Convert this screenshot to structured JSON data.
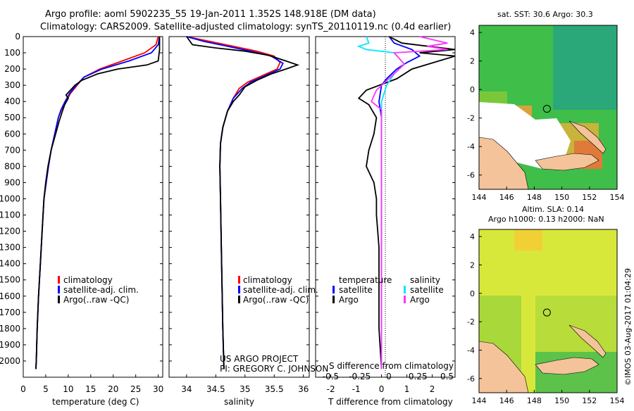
{
  "title_line1": "Argo profile: aoml 5902235_55 19-Jan-2011 1.352S 148.918E (DM data)",
  "title_line2": "Climatology: CARS2009. Satellite-adjusted climatology: synTS_20110119.nc (0.4d earlier)",
  "project_line1": "US ARGO PROJECT",
  "project_line2": "PI: GREGORY C. JOHNSON",
  "imos_stamp": "©IMOS 03-Aug-2017 01:04:29",
  "colors": {
    "climatology": "#ff0000",
    "satellite": "#0000ff",
    "argo": "#000000",
    "salinity_satellite": "#00e5ff",
    "salinity_argo": "#ff33ff",
    "land": "#f4c39a"
  },
  "chart_data": [
    {
      "type": "line",
      "name": "temperature-profile",
      "xlabel": "temperature (deg C)",
      "ylabel": "",
      "xlim": [
        0,
        31
      ],
      "ylim": [
        2100,
        0
      ],
      "xticks": [
        "0",
        "5",
        "10",
        "15",
        "20",
        "25",
        "30"
      ],
      "yticks": [
        "0",
        "100",
        "200",
        "300",
        "400",
        "500",
        "600",
        "700",
        "800",
        "900",
        "1000",
        "1100",
        "1200",
        "1300",
        "1400",
        "1500",
        "1600",
        "1700",
        "1800",
        "1900",
        "2000"
      ],
      "legend": [
        "climatology",
        "satellite-adj. clim.",
        "Argo(..raw -QC)"
      ],
      "series": [
        {
          "name": "climatology",
          "points": [
            [
              30.0,
              0
            ],
            [
              29.5,
              50
            ],
            [
              27,
              100
            ],
            [
              22,
              150
            ],
            [
              17,
              200
            ],
            [
              13.5,
              250
            ],
            [
              12,
              300
            ],
            [
              10.5,
              350
            ],
            [
              9.5,
              400
            ],
            [
              8.5,
              450
            ],
            [
              7.8,
              500
            ],
            [
              7,
              600
            ],
            [
              6.2,
              700
            ],
            [
              5.6,
              800
            ],
            [
              5.1,
              900
            ],
            [
              4.6,
              1000
            ],
            [
              4.2,
              1200
            ],
            [
              3.8,
              1400
            ],
            [
              3.4,
              1600
            ],
            [
              3.1,
              1800
            ],
            [
              2.9,
              2000
            ],
            [
              2.8,
              2050
            ]
          ]
        },
        {
          "name": "satellite",
          "points": [
            [
              30.3,
              0
            ],
            [
              30.0,
              50
            ],
            [
              28.5,
              100
            ],
            [
              23.5,
              150
            ],
            [
              17.5,
              200
            ],
            [
              13.5,
              250
            ],
            [
              11.8,
              300
            ],
            [
              10.3,
              350
            ],
            [
              9.3,
              400
            ],
            [
              8.4,
              450
            ],
            [
              7.8,
              500
            ],
            [
              7,
              600
            ],
            [
              6.2,
              700
            ],
            [
              5.6,
              800
            ],
            [
              5.1,
              900
            ],
            [
              4.6,
              1000
            ],
            [
              4.2,
              1200
            ],
            [
              3.8,
              1400
            ],
            [
              3.4,
              1600
            ],
            [
              3.1,
              1800
            ],
            [
              2.9,
              2000
            ],
            [
              2.8,
              2050
            ]
          ]
        },
        {
          "name": "argo",
          "points": [
            [
              30.3,
              0
            ],
            [
              30.3,
              80
            ],
            [
              30.0,
              150
            ],
            [
              27.5,
              175
            ],
            [
              21,
              200
            ],
            [
              16.5,
              230
            ],
            [
              13,
              270
            ],
            [
              11.5,
              300
            ],
            [
              9.5,
              360
            ],
            [
              10,
              380
            ],
            [
              9.2,
              420
            ],
            [
              8.7,
              460
            ],
            [
              8,
              520
            ],
            [
              7.2,
              600
            ],
            [
              6.2,
              700
            ],
            [
              5.5,
              800
            ],
            [
              5,
              900
            ],
            [
              4.6,
              1000
            ],
            [
              4.2,
              1200
            ],
            [
              3.8,
              1400
            ],
            [
              3.4,
              1600
            ],
            [
              3.1,
              1800
            ],
            [
              2.9,
              2000
            ],
            [
              2.8,
              2050
            ]
          ]
        }
      ]
    },
    {
      "type": "line",
      "name": "salinity-profile",
      "xlabel": "salinity",
      "xlim": [
        33.7,
        36.1
      ],
      "ylim": [
        2100,
        0
      ],
      "xticks": [
        "34",
        "34.5",
        "35",
        "35.5",
        "36"
      ],
      "legend": [
        "climatology",
        "satellite-adj. clim.",
        "Argo(..raw -QC)"
      ],
      "series": [
        {
          "name": "climatology",
          "points": [
            [
              34.0,
              0
            ],
            [
              34.4,
              30
            ],
            [
              34.8,
              60
            ],
            [
              35.2,
              90
            ],
            [
              35.5,
              120
            ],
            [
              35.6,
              160
            ],
            [
              35.55,
              200
            ],
            [
              35.3,
              240
            ],
            [
              35.05,
              280
            ],
            [
              34.9,
              320
            ],
            [
              34.8,
              380
            ],
            [
              34.7,
              460
            ],
            [
              34.62,
              560
            ],
            [
              34.58,
              660
            ],
            [
              34.57,
              800
            ],
            [
              34.58,
              1000
            ],
            [
              34.6,
              1400
            ],
            [
              34.62,
              1800
            ],
            [
              34.64,
              2050
            ]
          ]
        },
        {
          "name": "satellite",
          "points": [
            [
              34.0,
              0
            ],
            [
              34.3,
              30
            ],
            [
              34.7,
              60
            ],
            [
              35.1,
              90
            ],
            [
              35.45,
              120
            ],
            [
              35.65,
              165
            ],
            [
              35.6,
              200
            ],
            [
              35.35,
              240
            ],
            [
              35.1,
              280
            ],
            [
              34.95,
              320
            ],
            [
              34.8,
              380
            ],
            [
              34.7,
              460
            ],
            [
              34.62,
              560
            ],
            [
              34.58,
              660
            ],
            [
              34.57,
              800
            ],
            [
              34.58,
              1000
            ],
            [
              34.6,
              1400
            ],
            [
              34.62,
              1800
            ],
            [
              34.64,
              2050
            ]
          ]
        },
        {
          "name": "argo",
          "points": [
            [
              34.0,
              0
            ],
            [
              34.1,
              50
            ],
            [
              34.5,
              70
            ],
            [
              35.0,
              90
            ],
            [
              35.4,
              115
            ],
            [
              35.7,
              150
            ],
            [
              35.9,
              175
            ],
            [
              35.7,
              200
            ],
            [
              35.45,
              230
            ],
            [
              35.2,
              270
            ],
            [
              35.0,
              310
            ],
            [
              34.9,
              360
            ],
            [
              34.8,
              400
            ],
            [
              34.7,
              460
            ],
            [
              34.62,
              560
            ],
            [
              34.58,
              660
            ],
            [
              34.57,
              800
            ],
            [
              34.58,
              1000
            ],
            [
              34.6,
              1400
            ],
            [
              34.62,
              1800
            ],
            [
              34.64,
              2050
            ]
          ]
        }
      ]
    },
    {
      "type": "line",
      "name": "difference-profile",
      "xlabel": "T difference from climatology",
      "xlabel2": "S difference from climatology",
      "xlim": [
        -2.6,
        2.9
      ],
      "ylim": [
        2100,
        0
      ],
      "xticks": [
        "-2",
        "-1",
        "0",
        "1",
        "2"
      ],
      "xticks_s": [
        "-0.5",
        "-0.25",
        "0",
        "0.25",
        "0.5"
      ],
      "legend_headers": [
        "temperature",
        "salinity"
      ],
      "legend": [
        "satellite",
        "Argo",
        "satellite",
        "Argo"
      ],
      "series": [
        {
          "name": "temperature-satellite",
          "points": [
            [
              0.3,
              0
            ],
            [
              0.5,
              40
            ],
            [
              1.2,
              80
            ],
            [
              1.5,
              120
            ],
            [
              1.0,
              160
            ],
            [
              0.6,
              200
            ],
            [
              0.2,
              260
            ],
            [
              0,
              300
            ],
            [
              -0.1,
              400
            ],
            [
              0,
              500
            ],
            [
              0,
              800
            ],
            [
              0,
              2050
            ]
          ]
        },
        {
          "name": "temperature-argo",
          "points": [
            [
              0.3,
              0
            ],
            [
              0.8,
              40
            ],
            [
              2.9,
              80
            ],
            [
              1.5,
              100
            ],
            [
              2.9,
              120
            ],
            [
              1.2,
              200
            ],
            [
              0.6,
              260
            ],
            [
              -0.6,
              330
            ],
            [
              -0.9,
              380
            ],
            [
              -0.5,
              420
            ],
            [
              -0.2,
              500
            ],
            [
              -0.3,
              600
            ],
            [
              -0.5,
              700
            ],
            [
              -0.6,
              800
            ],
            [
              -0.3,
              900
            ],
            [
              -0.2,
              1000
            ],
            [
              -0.2,
              1100
            ],
            [
              -0.1,
              1300
            ],
            [
              -0.1,
              1800
            ],
            [
              0,
              2050
            ]
          ]
        },
        {
          "name": "salinity-satellite",
          "points": [
            [
              -0.6,
              0
            ],
            [
              -0.5,
              40
            ],
            [
              -0.9,
              60
            ],
            [
              -0.6,
              80
            ],
            [
              0.5,
              100
            ],
            [
              0.9,
              170
            ],
            [
              0.5,
              230
            ],
            [
              0.2,
              300
            ],
            [
              0,
              400
            ],
            [
              0,
              2050
            ]
          ]
        },
        {
          "name": "salinity-argo",
          "points": [
            [
              1.5,
              0
            ],
            [
              2.6,
              40
            ],
            [
              1.8,
              60
            ],
            [
              2.6,
              80
            ],
            [
              0.5,
              100
            ],
            [
              0.9,
              170
            ],
            [
              -0.2,
              330
            ],
            [
              -0.4,
              400
            ],
            [
              0,
              450
            ],
            [
              0,
              1800
            ],
            [
              0,
              2050
            ]
          ]
        }
      ]
    },
    {
      "type": "heatmap",
      "name": "sst-map",
      "title": "sat. SST: 30.6  Argo: 30.3",
      "xticks": [
        "144",
        "146",
        "148",
        "150",
        "152",
        "154"
      ],
      "yticks": [
        "4",
        "2",
        "0",
        "-2",
        "-4",
        "-6"
      ],
      "xlim": [
        144,
        154
      ],
      "ylim": [
        -7,
        4.5
      ],
      "marker": [
        148.918,
        -1.352
      ]
    },
    {
      "type": "heatmap",
      "name": "sla-map",
      "title1": "Altim. SLA: 0.14",
      "title2": "Argo h1000: 0.13 h2000: NaN",
      "xticks": [
        "144",
        "146",
        "148",
        "150",
        "152",
        "154"
      ],
      "yticks": [
        "4",
        "2",
        "0",
        "-2",
        "-4",
        "-6"
      ],
      "xlim": [
        144,
        154
      ],
      "ylim": [
        -7,
        4.5
      ],
      "marker": [
        148.918,
        -1.352
      ]
    }
  ]
}
